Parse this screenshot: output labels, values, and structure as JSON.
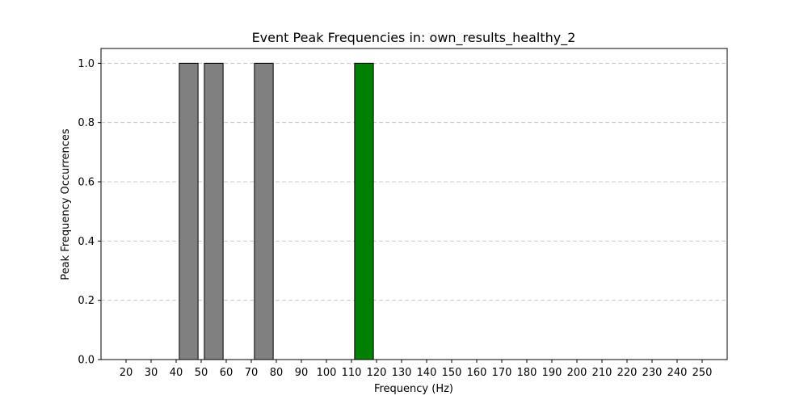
{
  "chart_data": {
    "type": "bar",
    "title": "Event Peak Frequencies in: own_results_healthy_2",
    "xlabel": "Frequency (Hz)",
    "ylabel": "Peak Frequency Occurrences",
    "xlim": [
      10,
      260
    ],
    "ylim": [
      0,
      1.05
    ],
    "x_ticks": [
      20,
      30,
      40,
      50,
      60,
      70,
      80,
      90,
      100,
      110,
      120,
      130,
      140,
      150,
      160,
      170,
      180,
      190,
      200,
      210,
      220,
      230,
      240,
      250
    ],
    "y_ticks": [
      0.0,
      0.2,
      0.4,
      0.6,
      0.8,
      1.0
    ],
    "y_tick_labels": [
      "0.0",
      "0.2",
      "0.4",
      "0.6",
      "0.8",
      "1.0"
    ],
    "bin_width": 10,
    "bar_fill_ratio": 0.75,
    "bars": [
      {
        "x": 45,
        "value": 1.0,
        "color": "#808080"
      },
      {
        "x": 55,
        "value": 1.0,
        "color": "#808080"
      },
      {
        "x": 75,
        "value": 1.0,
        "color": "#808080"
      },
      {
        "x": 115,
        "value": 1.0,
        "color": "#008000"
      }
    ],
    "grid": {
      "y": true,
      "x": false,
      "style": "dashed"
    },
    "colors": {
      "default_bar": "#808080",
      "highlight_bar": "#008000",
      "edge": "#000000",
      "grid": "#c8c8c8"
    }
  }
}
